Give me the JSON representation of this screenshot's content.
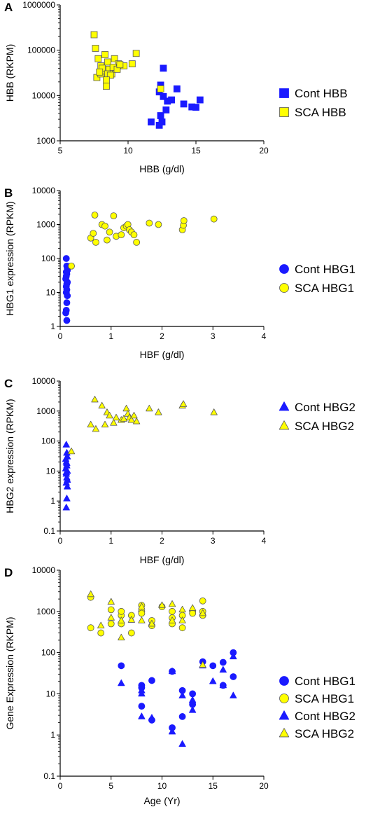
{
  "colors": {
    "cont": "#1a1aff",
    "sca": "#ffff00",
    "outline": "#5a5a5a"
  },
  "chart_data": [
    {
      "type": "scatter",
      "panel": "A",
      "xlabel": "HBB (g/dl)",
      "ylabel": "HBB (RKPM)",
      "yscale": "log",
      "xlim": [
        5,
        20
      ],
      "ylim": [
        1000,
        1000000
      ],
      "xticks": [
        5,
        10,
        15,
        20
      ],
      "yticks": [
        1000,
        10000,
        100000,
        1000000
      ],
      "x_tick_labels": [
        "5",
        "10",
        "15",
        "20"
      ],
      "y_tick_labels": [
        "1000",
        "10000",
        "100000",
        "1000000"
      ],
      "grid": false,
      "legend_placement": "right",
      "series": [
        {
          "name": "Cont HBB",
          "marker": "square",
          "color": "cont",
          "x": [
            11.7,
            12.3,
            12.5,
            12.4,
            12.8,
            12.9,
            12.6,
            13.2,
            13.6,
            14.1,
            14.7,
            15.0,
            15.3,
            12.3,
            12.6,
            12.4
          ],
          "y": [
            2600,
            2200,
            2600,
            3600,
            4800,
            7500,
            9500,
            8000,
            14000,
            6500,
            5600,
            5500,
            8000,
            12000,
            40000,
            17000
          ]
        },
        {
          "name": "SCA HBB",
          "marker": "square",
          "color": "sca",
          "x": [
            7.5,
            7.6,
            7.8,
            8.0,
            8.3,
            8.5,
            7.7,
            8.0,
            8.4,
            8.8,
            9.0,
            9.3,
            9.7,
            10.3,
            10.6,
            8.2,
            8.6,
            8.1,
            8.9,
            9.2,
            8.5,
            9.4,
            8.7,
            8.4,
            7.9,
            12.4
          ],
          "y": [
            220000,
            110000,
            65000,
            45000,
            80000,
            55000,
            25000,
            30000,
            16000,
            30000,
            65000,
            50000,
            45000,
            50000,
            85000,
            35000,
            38000,
            40000,
            42000,
            38000,
            30000,
            48000,
            28000,
            22000,
            33000,
            14000
          ]
        }
      ]
    },
    {
      "type": "scatter",
      "panel": "B",
      "xlabel": "HBF (g/dl)",
      "ylabel": "HBG1 expression (RPKM)",
      "yscale": "log",
      "xlim": [
        0,
        4
      ],
      "ylim": [
        1,
        10000
      ],
      "xticks": [
        0,
        1,
        2,
        3,
        4
      ],
      "yticks": [
        1,
        10,
        100,
        1000,
        10000
      ],
      "x_tick_labels": [
        "0",
        "1",
        "2",
        "3",
        "4"
      ],
      "y_tick_labels": [
        "1",
        "10",
        "100",
        "1000",
        "10000"
      ],
      "grid": false,
      "legend_placement": "right",
      "series": [
        {
          "name": "Cont HBG1",
          "marker": "circle",
          "color": "cont",
          "x": [
            0.12,
            0.13,
            0.14,
            0.12,
            0.13,
            0.11,
            0.14,
            0.12,
            0.13,
            0.12,
            0.14,
            0.13,
            0.12,
            0.11,
            0.13,
            0.12,
            0.14,
            0.13
          ],
          "y": [
            100,
            60,
            50,
            40,
            35,
            25,
            20,
            15,
            12,
            10,
            8,
            5,
            3,
            2.5,
            1.5,
            30,
            45,
            18
          ]
        },
        {
          "name": "SCA HBG1",
          "marker": "circle",
          "color": "sca",
          "x": [
            0.22,
            0.6,
            0.68,
            0.7,
            0.82,
            0.88,
            0.92,
            0.97,
            1.05,
            1.1,
            1.2,
            1.25,
            1.3,
            1.33,
            1.36,
            1.4,
            1.45,
            1.5,
            1.75,
            1.93,
            2.4,
            2.42,
            2.43,
            3.02,
            0.65
          ],
          "y": [
            60,
            400,
            1900,
            300,
            1000,
            900,
            350,
            600,
            1800,
            450,
            500,
            800,
            900,
            1000,
            700,
            600,
            500,
            300,
            1100,
            1000,
            700,
            950,
            1300,
            1450,
            550
          ]
        }
      ]
    },
    {
      "type": "scatter",
      "panel": "C",
      "xlabel": "HBF (g/dl)",
      "ylabel": "HBG2 expression (RPKM)",
      "yscale": "log",
      "xlim": [
        0,
        4
      ],
      "ylim": [
        0.1,
        10000
      ],
      "xticks": [
        0,
        1,
        2,
        3,
        4
      ],
      "yticks": [
        0.1,
        1,
        10,
        100,
        1000,
        10000
      ],
      "x_tick_labels": [
        "0",
        "1",
        "2",
        "3",
        "4"
      ],
      "y_tick_labels": [
        "0.1",
        "1",
        "10",
        "100",
        "1000",
        "10000"
      ],
      "grid": false,
      "legend_placement": "right",
      "series": [
        {
          "name": "Cont HBG2",
          "marker": "triangle",
          "color": "cont",
          "x": [
            0.12,
            0.13,
            0.14,
            0.12,
            0.13,
            0.11,
            0.14,
            0.12,
            0.13,
            0.12,
            0.14,
            0.13,
            0.12,
            0.11,
            0.13,
            0.12,
            0.14
          ],
          "y": [
            75,
            40,
            30,
            20,
            15,
            12,
            10,
            8,
            6,
            4,
            3,
            1.2,
            0.6,
            25,
            18,
            9,
            5
          ]
        },
        {
          "name": "SCA HBG2",
          "marker": "triangle",
          "color": "sca",
          "x": [
            0.22,
            0.6,
            0.68,
            0.7,
            0.82,
            0.88,
            0.92,
            0.97,
            1.05,
            1.1,
            1.2,
            1.25,
            1.3,
            1.33,
            1.36,
            1.4,
            1.45,
            1.5,
            1.75,
            1.93,
            2.4,
            2.42,
            3.02
          ],
          "y": [
            45,
            350,
            2400,
            250,
            1500,
            350,
            900,
            700,
            400,
            600,
            500,
            550,
            1200,
            800,
            600,
            500,
            700,
            450,
            1200,
            900,
            1500,
            1700,
            900
          ]
        }
      ]
    },
    {
      "type": "scatter",
      "panel": "D",
      "xlabel": "Age (Yr)",
      "ylabel": "Gene Expression (RKPM)",
      "yscale": "log",
      "xlim": [
        0,
        20
      ],
      "ylim": [
        0.1,
        10000
      ],
      "xticks": [
        0,
        5,
        10,
        15,
        20
      ],
      "yticks": [
        0.1,
        1,
        10,
        100,
        1000,
        10000
      ],
      "x_tick_labels": [
        "0",
        "5",
        "10",
        "15",
        "20"
      ],
      "y_tick_labels": [
        "0.1",
        "1",
        "10",
        "100",
        "1000",
        "10000"
      ],
      "grid": false,
      "legend_placement": "right",
      "series": [
        {
          "name": "Cont HBG1",
          "marker": "circle",
          "color": "cont",
          "x": [
            6,
            8,
            8,
            8,
            9,
            9,
            11,
            11,
            12,
            12,
            13,
            13,
            14,
            15,
            16,
            16,
            17,
            17
          ],
          "y": [
            48,
            16,
            14,
            5,
            2.3,
            21,
            1.5,
            35,
            2.8,
            12,
            10,
            5.5,
            60,
            48,
            58,
            16,
            100,
            26
          ]
        },
        {
          "name": "SCA HBG1",
          "marker": "circle",
          "color": "sca",
          "x": [
            3,
            3,
            4,
            5,
            5,
            6,
            6,
            6,
            7,
            7,
            8,
            8,
            8,
            9,
            9,
            10,
            11,
            11,
            11,
            12,
            12,
            13,
            13,
            14,
            14,
            14
          ],
          "y": [
            2200,
            400,
            300,
            500,
            1100,
            800,
            1000,
            500,
            300,
            800,
            1400,
            1000,
            900,
            600,
            450,
            1300,
            700,
            500,
            1000,
            400,
            800,
            1000,
            900,
            1800,
            1000,
            800
          ]
        },
        {
          "name": "Cont HBG2",
          "marker": "triangle",
          "color": "cont",
          "x": [
            6,
            8,
            8,
            8,
            9,
            11,
            11,
            12,
            12,
            13,
            13,
            14,
            15,
            16,
            16,
            17,
            17
          ],
          "y": [
            18,
            12,
            10,
            2.8,
            2.6,
            1.2,
            35,
            0.6,
            9,
            7,
            4,
            48,
            20,
            38,
            16,
            80,
            9
          ]
        },
        {
          "name": "SCA HBG2",
          "marker": "triangle",
          "color": "sca",
          "x": [
            3,
            4,
            5,
            5,
            6,
            6,
            7,
            8,
            8,
            9,
            10,
            11,
            11,
            12,
            12,
            13,
            14,
            14
          ],
          "y": [
            2600,
            450,
            1700,
            700,
            600,
            230,
            620,
            1300,
            600,
            500,
            1400,
            1500,
            600,
            1100,
            600,
            1200,
            50,
            900
          ]
        }
      ]
    }
  ]
}
